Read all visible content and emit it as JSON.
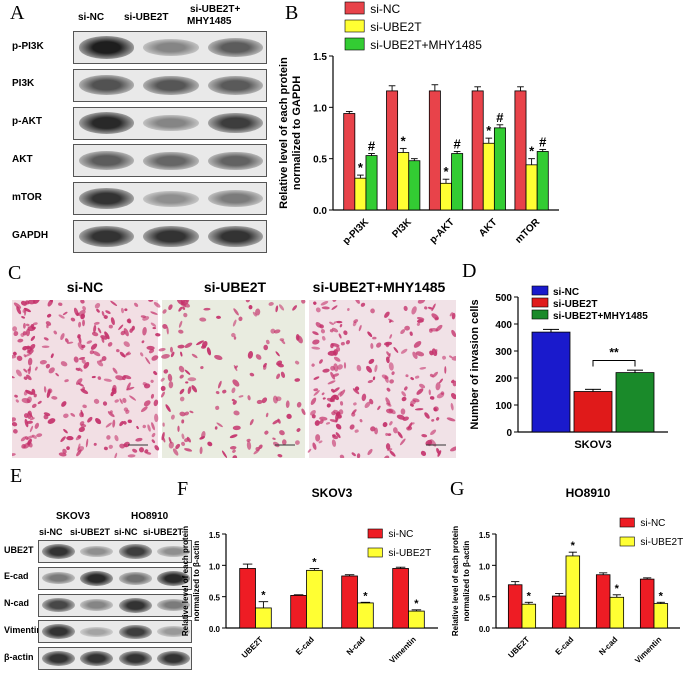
{
  "panels": {
    "A": "A",
    "B": "B",
    "C": "C",
    "D": "D",
    "E": "E",
    "F": "F",
    "G": "G"
  },
  "panel_a": {
    "columns": [
      "si-NC",
      "si-UBE2T",
      "si-UBE2T+",
      "MHY1485"
    ],
    "rows": [
      "p-PI3K",
      "PI3K",
      "p-AKT",
      "AKT",
      "mTOR",
      "GAPDH"
    ],
    "intensity": [
      [
        0.95,
        0.45,
        0.65
      ],
      [
        0.7,
        0.68,
        0.66
      ],
      [
        0.9,
        0.45,
        0.8
      ],
      [
        0.65,
        0.6,
        0.62
      ],
      [
        0.85,
        0.4,
        0.5
      ],
      [
        0.85,
        0.85,
        0.85
      ]
    ]
  },
  "panel_c": {
    "titles": [
      "si-NC",
      "si-UBE2T",
      "si-UBE2T+MHY1485"
    ]
  },
  "panel_e": {
    "groups": [
      "SKOV3",
      "HO8910"
    ],
    "lanes": [
      "si-NC",
      "si-UBE2T",
      "si-NC",
      "si-UBE2T"
    ],
    "rows": [
      "UBE2T",
      "E-cad",
      "N-cad",
      "Vimentin",
      "β-actin"
    ],
    "intensity": [
      [
        0.85,
        0.4,
        0.8,
        0.4
      ],
      [
        0.5,
        0.9,
        0.55,
        0.9
      ],
      [
        0.75,
        0.45,
        0.85,
        0.5
      ],
      [
        0.85,
        0.3,
        0.8,
        0.35
      ],
      [
        0.85,
        0.85,
        0.85,
        0.85
      ]
    ]
  },
  "chart_data": [
    {
      "id": "B",
      "type": "bar",
      "title": "",
      "xlabel": "",
      "ylabel": "Relative level of each protein normalized to GAPDH",
      "ylim": [
        0,
        1.5
      ],
      "yticks": [
        "0.0",
        "0.5",
        "1.0",
        "1.5"
      ],
      "categories": [
        "p-PI3K",
        "PI3K",
        "p-AKT",
        "AKT",
        "mTOR"
      ],
      "legend_position": "top",
      "series": [
        {
          "name": "si-NC",
          "color": "#e8434a",
          "values": [
            0.94,
            1.16,
            1.16,
            1.16,
            1.16
          ],
          "errors": [
            0.02,
            0.05,
            0.06,
            0.04,
            0.04
          ],
          "marks": [
            "",
            "",
            "",
            "",
            ""
          ]
        },
        {
          "name": "si-UBE2T",
          "color": "#ffff33",
          "values": [
            0.31,
            0.56,
            0.26,
            0.65,
            0.44
          ],
          "errors": [
            0.03,
            0.04,
            0.04,
            0.05,
            0.06
          ],
          "marks": [
            "*",
            "*",
            "*",
            "*",
            "*"
          ]
        },
        {
          "name": "si-UBE2T+MHY1485",
          "color": "#33cc33",
          "values": [
            0.53,
            0.48,
            0.55,
            0.8,
            0.57
          ],
          "errors": [
            0.02,
            0.02,
            0.02,
            0.03,
            0.02
          ],
          "marks": [
            "#",
            "",
            "#",
            "#",
            "#"
          ]
        }
      ]
    },
    {
      "id": "D",
      "type": "bar",
      "title": "",
      "xlabel": "SKOV3",
      "ylabel": "Number of invasion cells",
      "ylim": [
        0,
        500
      ],
      "yticks": [
        "0",
        "100",
        "200",
        "300",
        "400",
        "500"
      ],
      "legend_position": "top",
      "series": [
        {
          "name": "si-NC",
          "color": "#1a1acc",
          "value": 370,
          "error": 10
        },
        {
          "name": "si-UBE2T",
          "color": "#e01a1a",
          "value": 150,
          "error": 8
        },
        {
          "name": "si-UBE2T+MHY1485",
          "color": "#1a8a2a",
          "value": 220,
          "error": 9
        }
      ],
      "significance": "**"
    },
    {
      "id": "F",
      "type": "bar",
      "title": "SKOV3",
      "xlabel": "",
      "ylabel": "Relative level of each protein normalized to β-actin",
      "ylim": [
        0,
        1.5
      ],
      "yticks": [
        "0.0",
        "0.5",
        "1.0",
        "1.5"
      ],
      "categories": [
        "UBE2T",
        "E-cad",
        "N-cad",
        "Vimentin"
      ],
      "legend_position": "top-right",
      "series": [
        {
          "name": "si-NC",
          "color": "#ee1c24",
          "values": [
            0.95,
            0.52,
            0.83,
            0.95
          ],
          "errors": [
            0.07,
            0.01,
            0.02,
            0.02
          ],
          "marks": [
            "",
            "",
            "",
            ""
          ]
        },
        {
          "name": "si-UBE2T",
          "color": "#ffff33",
          "values": [
            0.32,
            0.92,
            0.4,
            0.27
          ],
          "errors": [
            0.1,
            0.03,
            0.01,
            0.02
          ],
          "marks": [
            "*",
            "*",
            "*",
            "*"
          ]
        }
      ]
    },
    {
      "id": "G",
      "type": "bar",
      "title": "HO8910",
      "xlabel": "",
      "ylabel": "Relative level of each protein normalized to β-actin",
      "ylim": [
        0,
        1.5
      ],
      "yticks": [
        "0.0",
        "0.5",
        "1.0",
        "1.5"
      ],
      "categories": [
        "UBE2T",
        "E-cad",
        "N-cad",
        "Vimentin"
      ],
      "legend_position": "top-right",
      "series": [
        {
          "name": "si-NC",
          "color": "#ee1c24",
          "values": [
            0.69,
            0.51,
            0.85,
            0.78
          ],
          "errors": [
            0.05,
            0.04,
            0.03,
            0.02
          ],
          "marks": [
            "",
            "",
            "",
            ""
          ]
        },
        {
          "name": "si-UBE2T",
          "color": "#ffff33",
          "values": [
            0.38,
            1.15,
            0.49,
            0.39
          ],
          "errors": [
            0.03,
            0.06,
            0.04,
            0.02
          ],
          "marks": [
            "*",
            "*",
            "*",
            "*"
          ]
        }
      ]
    }
  ]
}
